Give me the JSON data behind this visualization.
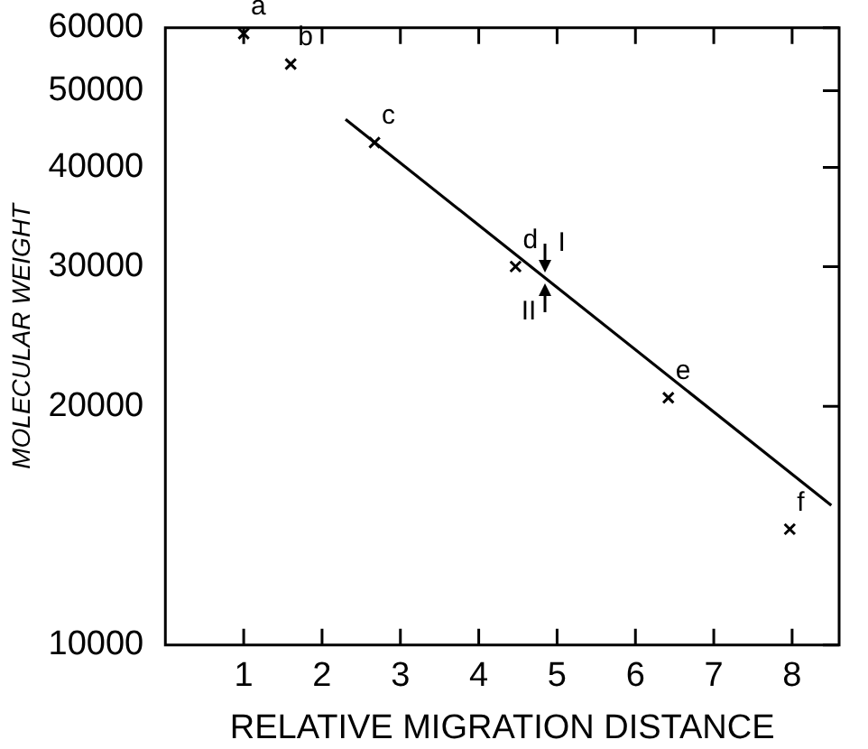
{
  "chart_data": {
    "type": "scatter",
    "xlabel": "RELATIVE MIGRATION DISTANCE",
    "ylabel": "MOLECULAR WEIGHT",
    "series": [
      {
        "type": "scatter",
        "marker": "cross",
        "color": "#000000",
        "x": [
          1,
          1.6,
          2.67,
          4.47,
          6.42,
          7.97
        ],
        "values": [
          59000,
          54000,
          43000,
          30000,
          20500,
          14000
        ]
      },
      {
        "type": "line",
        "marker": "none",
        "color": "#000000",
        "x": [
          2.3,
          8.5
        ],
        "values": [
          46000,
          15000
        ]
      }
    ],
    "log": "y",
    "xlim": [
      0,
      8.6
    ],
    "xticks": [
      1,
      2,
      3,
      4,
      5,
      6,
      7,
      8
    ],
    "ylim": [
      10000,
      60000
    ],
    "yticks": [
      10000,
      20000,
      30000,
      40000,
      50000,
      60000
    ],
    "grid": false,
    "annotations": [
      {
        "text": "a",
        "x": 1,
        "y": 59000
      },
      {
        "text": "b",
        "x": 1.6,
        "y": 54000
      },
      {
        "text": "c",
        "x": 2.67,
        "y": 43000
      },
      {
        "text": "d",
        "x": 4.47,
        "y": 30000
      },
      {
        "text": "e",
        "x": 6.42,
        "y": 20500
      },
      {
        "text": "f",
        "x": 7.97,
        "y": 14000
      },
      {
        "text": "I",
        "x": 4.85,
        "y": 29000
      },
      {
        "text": "II",
        "x": 4.85,
        "y": 29000
      }
    ]
  }
}
